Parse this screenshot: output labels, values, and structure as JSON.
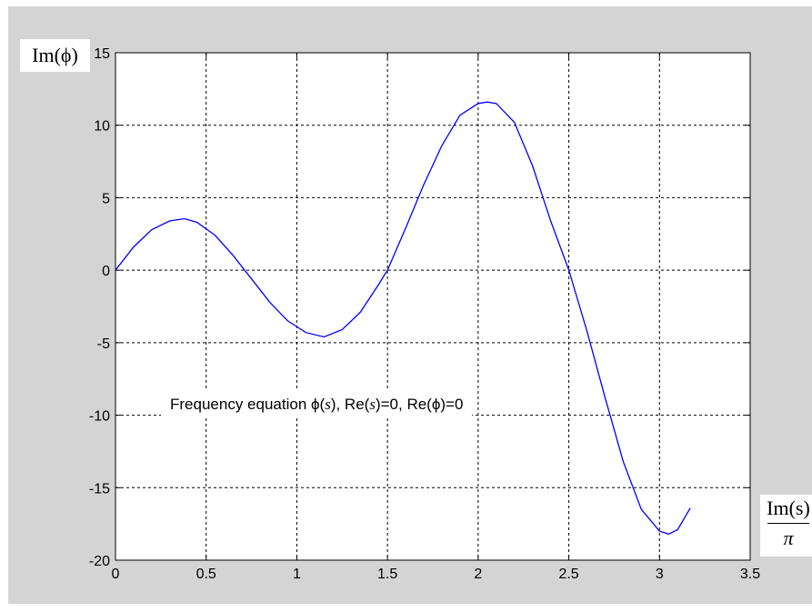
{
  "chart_data": {
    "type": "line",
    "title": "",
    "ylabel": "Im(ϕ)",
    "xlabel_numerator": "Im(s)",
    "xlabel_denominator": "π",
    "annotation": {
      "prefix": "Frequency equation ",
      "phi1": "ϕ",
      "p1": "(",
      "s1": "s",
      "p2": "), Re(",
      "s2": "s",
      "p3": ")=0, Re(",
      "phi2": "ϕ",
      "p4": ")=0"
    },
    "xlim": [
      0,
      3.5
    ],
    "ylim": [
      -20,
      15
    ],
    "xticks": [
      "0",
      "0.5",
      "1",
      "1.5",
      "2",
      "2.5",
      "3",
      "3.5"
    ],
    "yticks": [
      "15",
      "10",
      "5",
      "0",
      "-5",
      "-10",
      "-15",
      "-20"
    ],
    "grid": true,
    "series": [
      {
        "color": "#0000ff",
        "x": [
          0,
          0.1,
          0.2,
          0.3,
          0.38,
          0.45,
          0.55,
          0.65,
          0.75,
          0.85,
          0.95,
          1.05,
          1.15,
          1.25,
          1.35,
          1.45,
          1.5,
          1.6,
          1.7,
          1.8,
          1.9,
          2.0,
          2.05,
          2.1,
          2.2,
          2.3,
          2.4,
          2.5,
          2.6,
          2.7,
          2.8,
          2.9,
          3.0,
          3.05,
          3.1,
          3.17
        ],
        "y": [
          0,
          1.6,
          2.8,
          3.4,
          3.55,
          3.3,
          2.4,
          1.0,
          -0.6,
          -2.2,
          -3.5,
          -4.3,
          -4.6,
          -4.1,
          -2.9,
          -1.0,
          0.0,
          2.9,
          5.9,
          8.6,
          10.7,
          11.5,
          11.6,
          11.5,
          10.2,
          7.2,
          3.4,
          0.0,
          -4.2,
          -8.8,
          -13.2,
          -16.5,
          -18.0,
          -18.2,
          -17.9,
          -16.4
        ]
      }
    ]
  }
}
